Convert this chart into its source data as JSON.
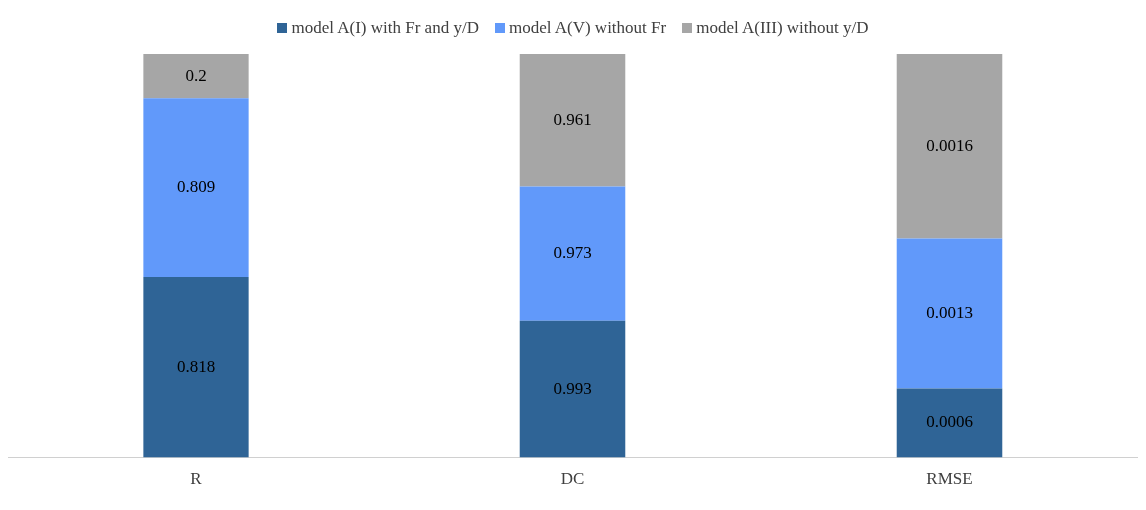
{
  "chart_data": [
    {
      "type": "bar",
      "stacked": true,
      "categories": [
        "R"
      ],
      "data_labels": true,
      "legend": "top",
      "series": [
        {
          "name": "model A(I) with Fr and y/D",
          "color": "#2f6496",
          "values": [
            0.818
          ]
        },
        {
          "name": "model A(V) without Fr",
          "color": "#6199fa",
          "values": [
            0.809
          ]
        },
        {
          "name": "model A(III) without y/D",
          "color": "#a6a6a6",
          "values": [
            0.2
          ]
        }
      ]
    },
    {
      "type": "bar",
      "stacked": true,
      "categories": [
        "DC"
      ],
      "data_labels": true,
      "series": [
        {
          "color": "#2f6496",
          "values": [
            0.993
          ]
        },
        {
          "color": "#6199fa",
          "values": [
            0.973
          ]
        },
        {
          "color": "#a6a6a6",
          "values": [
            0.961
          ]
        }
      ]
    },
    {
      "type": "bar",
      "stacked": true,
      "categories": [
        "RMSE"
      ],
      "data_labels": true,
      "series": [
        {
          "color": "#2f6496",
          "values": [
            0.0006
          ]
        },
        {
          "color": "#6199fa",
          "values": [
            0.0013
          ]
        },
        {
          "color": "#a6a6a6",
          "values": [
            0.0016
          ]
        }
      ]
    }
  ]
}
